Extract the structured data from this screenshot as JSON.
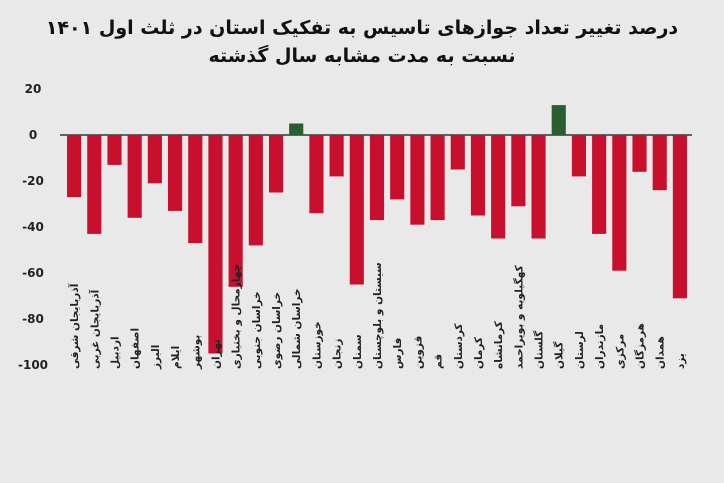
{
  "chart_data": {
    "type": "bar",
    "title": "درصد تغییر تعداد جوازهای تاسیس به تفکیک استان در ثلث اول ۱۴۰۱",
    "subtitle": "نسبت به مدت مشابه سال گذشته",
    "xlabel": "",
    "ylabel": "",
    "ylim": [
      -100,
      20
    ],
    "yticks": [
      20,
      0,
      -20,
      -40,
      -60,
      -80,
      -100
    ],
    "ytick_labels": [
      "20",
      "0",
      "-20",
      "-40",
      "-60",
      "-80",
      "-100"
    ],
    "grid": false,
    "legend": "none",
    "positive_color": "#2a5e2f",
    "negative_color": "#c8102e",
    "categories": [
      "آذربایجان شرقی",
      "آذربایجان غربی",
      "اردبیل",
      "اصفهان",
      "البرز",
      "ایلام",
      "بوشهر",
      "تهران",
      "چهارمحال و بختیاری",
      "خراسان جنوبی",
      "خراسان رضوی",
      "خراسان شمالی",
      "خوزستان",
      "زنجان",
      "سمنان",
      "سیستان و بلوچستان",
      "فارس",
      "قزوین",
      "قم",
      "کردستان",
      "کرمان",
      "کرمانشاه",
      "کهگیلویه و بویراحمد",
      "گلستان",
      "گیلان",
      "لرستان",
      "مازندران",
      "مرکزی",
      "هرمزگان",
      "همدان",
      "یزد"
    ],
    "values": [
      -27,
      -43,
      -13,
      -36,
      -21,
      -33,
      -47,
      -95,
      -66,
      -48,
      -25,
      5,
      -34,
      -18,
      -65,
      -37,
      -28,
      -39,
      -37,
      -15,
      -35,
      -45,
      -31,
      -45,
      13,
      -18,
      -43,
      -59,
      -16,
      -24,
      -71
    ]
  }
}
